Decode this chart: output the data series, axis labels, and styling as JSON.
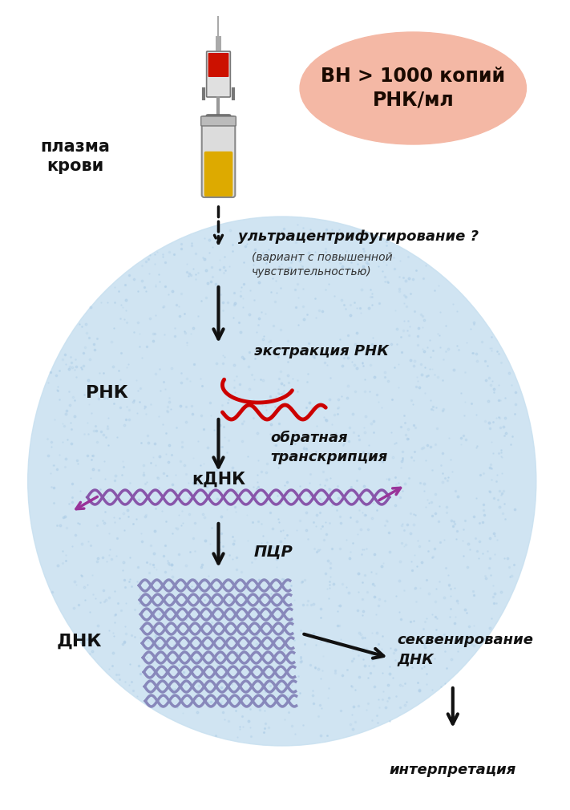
{
  "bg_color": "#ffffff",
  "cloud_color": "#c8e0f0",
  "ellipse_color": "#f4b8a5",
  "ellipse_text": "ВН > 1000 копий\nРНК/мл",
  "label_plasma": "плазма\nкрови",
  "label_ultra": "ультрацентрифугирование ?",
  "label_ultra_sub": "(вариант с повышенной\nчувствительностью)",
  "label_extraction": "экстракция РНК",
  "label_rnk": "РНК",
  "label_reverse": "обратная\nтранскрипция",
  "label_cdna": "кДНК",
  "label_pcr": "ПЦР",
  "label_dnk": "ДНК",
  "label_seq": "секвенирование\nДНК",
  "label_interp": "интерпретация",
  "arrow_color": "#111111",
  "dna_color": "#8888bb",
  "rna_color": "#cc0000",
  "cdna_color": "#8855aa",
  "cdna_arrow_color": "#993399"
}
